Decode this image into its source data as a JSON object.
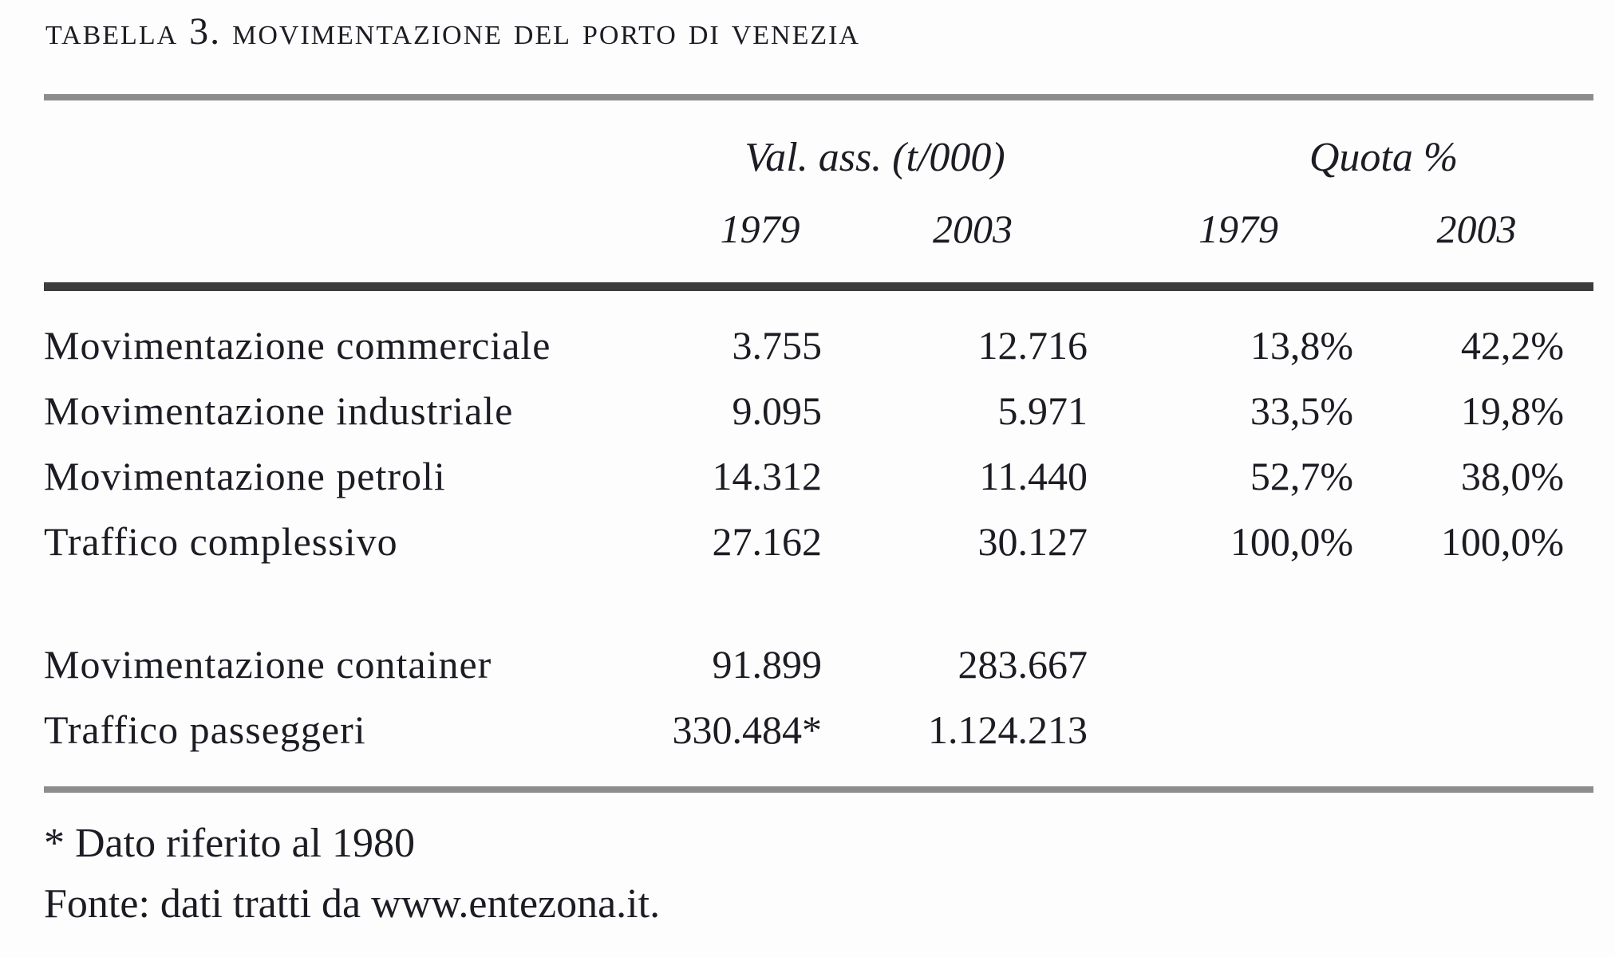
{
  "figure": {
    "title": "tabella 3. movimentazione del porto di venezia",
    "columns": {
      "group_val_ass": "Val. ass. (t/000)",
      "group_quota": "Quota %",
      "years": [
        "1979",
        "2003",
        "1979",
        "2003"
      ]
    },
    "rows": [
      {
        "label": "Movimentazione commerciale",
        "cells": [
          "3.755",
          "12.716",
          "13,8%",
          "42,2%"
        ]
      },
      {
        "label": "Movimentazione industriale",
        "cells": [
          "9.095",
          "5.971",
          "33,5%",
          "19,8%"
        ]
      },
      {
        "label": "Movimentazione petroli",
        "cells": [
          "14.312",
          "11.440",
          "52,7%",
          "38,0%"
        ]
      },
      {
        "label": "Traffico complessivo",
        "cells": [
          "27.162",
          "30.127",
          "100,0%",
          "100,0%"
        ]
      },
      {
        "label": "Movimentazione container",
        "cells": [
          "91.899",
          "283.667",
          "",
          ""
        ]
      },
      {
        "label": "Traffico passeggeri",
        "cells": [
          "330.484*",
          "1.124.213",
          "",
          ""
        ]
      }
    ],
    "footnotes": {
      "asterisk_note": "* Dato riferito al 1980",
      "source_note": "Fonte: dati tratti da www.entezona.it."
    },
    "colors": {
      "text": "#1c1c24",
      "rule_light": "#8d8d8d",
      "rule_dark": "#3d3d3d",
      "background": "#fdfdfd"
    }
  },
  "chart_data": {
    "type": "table",
    "title": "Tabella 3. Movimentazione del porto di Venezia",
    "column_groups": [
      "Val. ass. (t/000)",
      "Quota %"
    ],
    "columns": [
      "Val. ass. 1979",
      "Val. ass. 2003",
      "Quota % 1979",
      "Quota % 2003"
    ],
    "rows": [
      {
        "label": "Movimentazione commerciale",
        "val_ass_1979": 3755,
        "val_ass_2003": 12716,
        "quota_1979_pct": 13.8,
        "quota_2003_pct": 42.2
      },
      {
        "label": "Movimentazione industriale",
        "val_ass_1979": 9095,
        "val_ass_2003": 5971,
        "quota_1979_pct": 33.5,
        "quota_2003_pct": 19.8
      },
      {
        "label": "Movimentazione petroli",
        "val_ass_1979": 14312,
        "val_ass_2003": 11440,
        "quota_1979_pct": 52.7,
        "quota_2003_pct": 38.0
      },
      {
        "label": "Traffico complessivo",
        "val_ass_1979": 27162,
        "val_ass_2003": 30127,
        "quota_1979_pct": 100.0,
        "quota_2003_pct": 100.0
      },
      {
        "label": "Movimentazione container",
        "val_1979": 91899,
        "val_2003": 283667
      },
      {
        "label": "Traffico passeggeri",
        "val_1979": 330484,
        "val_1979_note": "Dato riferito al 1980",
        "val_2003": 1124213
      }
    ],
    "footnote": "* Dato riferito al 1980",
    "source": "Fonte: dati tratti da www.entezona.it."
  }
}
